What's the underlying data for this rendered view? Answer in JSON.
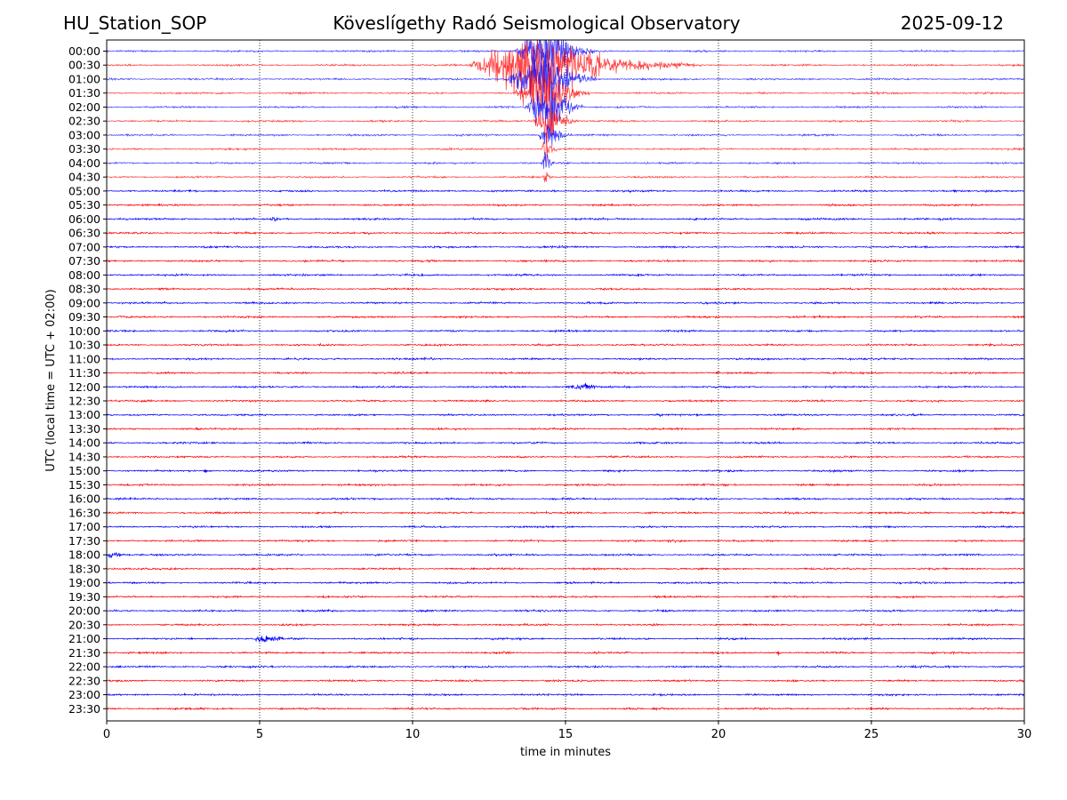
{
  "header": {
    "station": "HU_Station_SOP",
    "title": "Köveslígethy Radó Seismological Observatory",
    "date": "2025-09-12"
  },
  "chart_data": {
    "type": "line",
    "subtype": "helicorder",
    "xlabel": "time in minutes",
    "ylabel": "UTC (local time = UTC + 02:00)",
    "xlim": [
      0,
      30
    ],
    "xticks": [
      "0",
      "5",
      "10",
      "15",
      "20",
      "25",
      "30"
    ],
    "grid": "vertical dotted lines at each x tick",
    "colors": {
      "even_rows": "#0000ff",
      "odd_rows": "#ff0000"
    },
    "rows": [
      "00:00",
      "00:30",
      "01:00",
      "01:30",
      "02:00",
      "02:30",
      "03:00",
      "03:30",
      "04:00",
      "04:30",
      "05:00",
      "05:30",
      "06:00",
      "06:30",
      "07:00",
      "07:30",
      "08:00",
      "08:30",
      "09:00",
      "09:30",
      "10:00",
      "10:30",
      "11:00",
      "11:30",
      "12:00",
      "12:30",
      "13:00",
      "13:30",
      "14:00",
      "14:30",
      "15:00",
      "15:30",
      "16:00",
      "16:30",
      "17:00",
      "17:30",
      "18:00",
      "18:30",
      "19:00",
      "19:30",
      "20:00",
      "20:30",
      "21:00",
      "21:30",
      "22:00",
      "22:30",
      "23:00",
      "23:30"
    ],
    "events": [
      {
        "row": "00:00",
        "start_min": 13.3,
        "peak_min": 14.5,
        "end_min": 16.0,
        "amp": 1.0
      },
      {
        "row": "00:30",
        "start_min": 11.8,
        "peak_min": 13.8,
        "end_min": 19.2,
        "amp": 1.0
      },
      {
        "row": "01:00",
        "start_min": 13.0,
        "peak_min": 14.4,
        "end_min": 16.0,
        "amp": 1.0
      },
      {
        "row": "01:30",
        "start_min": 13.3,
        "peak_min": 14.4,
        "end_min": 15.8,
        "amp": 1.0
      },
      {
        "row": "02:00",
        "start_min": 13.6,
        "peak_min": 14.5,
        "end_min": 15.6,
        "amp": 0.8
      },
      {
        "row": "02:30",
        "start_min": 13.9,
        "peak_min": 14.5,
        "end_min": 15.4,
        "amp": 0.7
      },
      {
        "row": "03:00",
        "start_min": 14.1,
        "peak_min": 14.4,
        "end_min": 15.2,
        "amp": 0.6
      },
      {
        "row": "03:30",
        "start_min": 14.2,
        "peak_min": 14.35,
        "end_min": 14.8,
        "amp": 0.5
      },
      {
        "row": "04:00",
        "start_min": 14.2,
        "peak_min": 14.35,
        "end_min": 14.7,
        "amp": 0.45
      },
      {
        "row": "04:30",
        "start_min": 14.25,
        "peak_min": 14.35,
        "end_min": 14.6,
        "amp": 0.3
      },
      {
        "row": "06:00",
        "start_min": 5.2,
        "peak_min": 5.5,
        "end_min": 6.0,
        "amp": 0.07
      },
      {
        "row": "11:00",
        "start_min": 22.7,
        "peak_min": 22.85,
        "end_min": 23.1,
        "amp": 0.06
      },
      {
        "row": "12:00",
        "start_min": 14.9,
        "peak_min": 15.7,
        "end_min": 16.6,
        "amp": 0.12
      },
      {
        "row": "13:00",
        "start_min": 17.8,
        "peak_min": 18.1,
        "end_min": 18.6,
        "amp": 0.04
      },
      {
        "row": "15:00",
        "start_min": 3.15,
        "peak_min": 3.25,
        "end_min": 3.5,
        "amp": 0.07
      },
      {
        "row": "17:30",
        "start_min": 17.5,
        "peak_min": 18.5,
        "end_min": 20.0,
        "amp": 0.04
      },
      {
        "row": "17:30",
        "start_min": 29.9,
        "peak_min": 30.0,
        "end_min": 30.0,
        "amp": 0.08
      },
      {
        "row": "18:00",
        "start_min": 0.0,
        "peak_min": 0.1,
        "end_min": 1.2,
        "amp": 0.1
      },
      {
        "row": "21:00",
        "start_min": 4.8,
        "peak_min": 5.0,
        "end_min": 6.5,
        "amp": 0.14
      },
      {
        "row": "21:30",
        "start_min": 21.8,
        "peak_min": 21.95,
        "end_min": 22.3,
        "amp": 0.07
      }
    ]
  }
}
